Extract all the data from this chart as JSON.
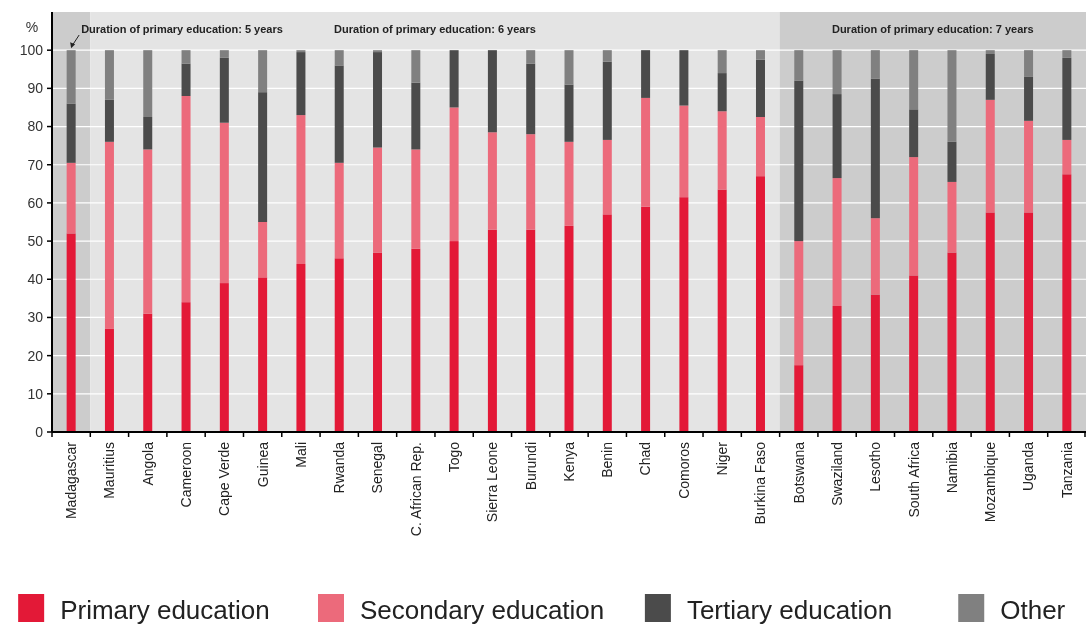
{
  "chart_data": {
    "type": "bar",
    "stacked": true,
    "ylabel": "%",
    "categories": [
      "Madagascar",
      "Mauritius",
      "Angola",
      "Cameroon",
      "Cape Verde",
      "Guinea",
      "Mali",
      "Rwanda",
      "Senegal",
      "C. African Rep.",
      "Togo",
      "Sierra Leone",
      "Burundi",
      "Kenya",
      "Benin",
      "Chad",
      "Comoros",
      "Niger",
      "Burkina Faso",
      "Botswana",
      "Swaziland",
      "Lesotho",
      "South Africa",
      "Namibia",
      "Mozambique",
      "Uganda",
      "Tanzania"
    ],
    "series": [
      {
        "name": "Primary education",
        "color": "#e31937",
        "values": [
          52,
          27,
          31,
          34,
          39,
          40.5,
          44,
          45.5,
          47,
          48,
          50,
          53,
          53,
          54,
          57,
          59,
          61.5,
          63.5,
          67,
          17.5,
          33,
          36,
          41,
          47,
          57.5,
          57.5,
          67.5
        ]
      },
      {
        "name": "Secondary education",
        "color": "#ec6a7b",
        "values": [
          18.5,
          49,
          43,
          54,
          42,
          14.5,
          39,
          25,
          27.5,
          26,
          35,
          25.5,
          25,
          22,
          19.5,
          28.5,
          24,
          20.5,
          15.5,
          32.5,
          33.5,
          20,
          31,
          18.5,
          29.5,
          24,
          9
        ]
      },
      {
        "name": "Tertiary education",
        "color": "#4b4b4b",
        "values": [
          15.5,
          11,
          8.5,
          8.5,
          17,
          34,
          16.5,
          25.5,
          25,
          17.5,
          15,
          21.5,
          18.5,
          15,
          20.5,
          12.5,
          14.5,
          10,
          15,
          42,
          22,
          36.5,
          12.5,
          10.5,
          12,
          11.5,
          21.5
        ]
      },
      {
        "name": "Other",
        "color": "#808080",
        "values": [
          14,
          13,
          17.5,
          3.5,
          2,
          11,
          0.5,
          4,
          0.5,
          8.5,
          0,
          0,
          3.5,
          9,
          3,
          0,
          0,
          6,
          2.5,
          8,
          11.5,
          7.5,
          15.5,
          24,
          1,
          7,
          2
        ]
      }
    ],
    "ylim": [
      0,
      110
    ],
    "yticks": [
      0,
      10,
      20,
      30,
      40,
      50,
      60,
      70,
      80,
      90,
      100
    ],
    "grid": "y",
    "legend": "bottom",
    "bands": [
      {
        "axis": "x",
        "from": "Madagascar",
        "to": "Madagascar",
        "label": "Duration of primary education: 5 years",
        "color": "#cccccc"
      },
      {
        "axis": "x",
        "from": "Mauritius",
        "to": "Burkina Faso",
        "label": "Duration of primary education: 6 years",
        "color": "#e4e4e4"
      },
      {
        "axis": "x",
        "from": "Botswana",
        "to": "Tanzania",
        "label": "Duration of primary education: 7 years",
        "color": "#cccccc"
      }
    ]
  }
}
